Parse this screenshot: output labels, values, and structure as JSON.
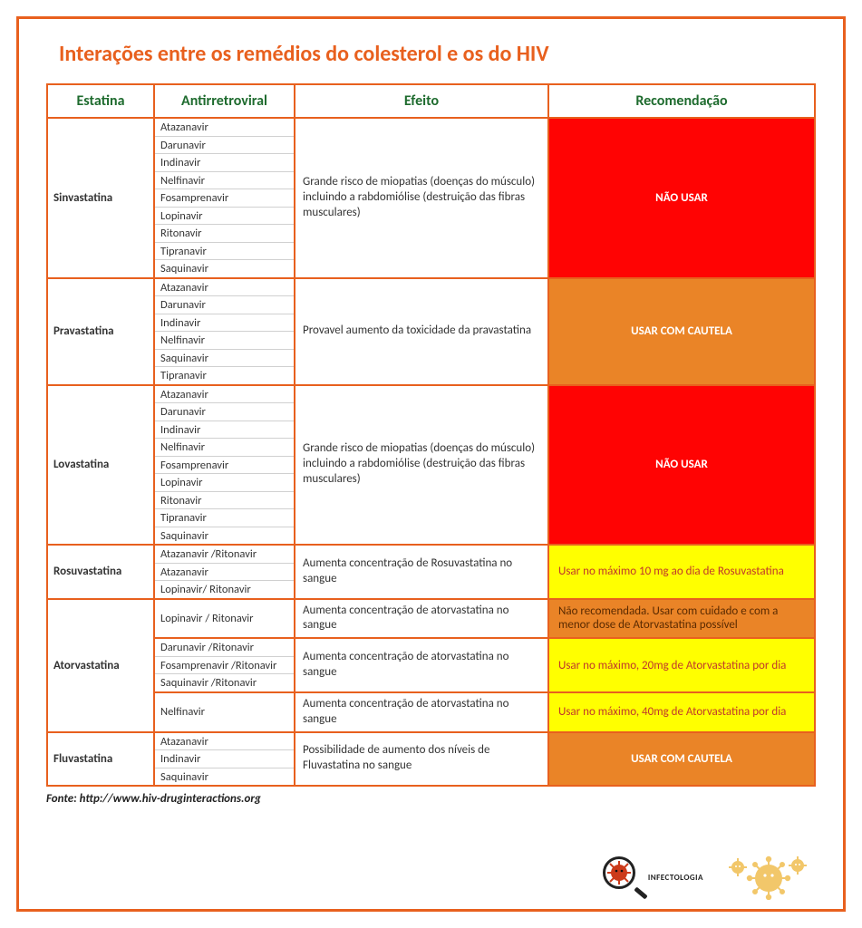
{
  "title": "Interações entre os remédios do colesterol e os do HIV",
  "headers": {
    "statin": "Estatina",
    "arv": "Antirretroviral",
    "effect": "Efeito",
    "rec": "Recomendação"
  },
  "colors": {
    "border": "#e8601e",
    "header_text": "#1e6b2e",
    "rec_red_bg": "#ff0303",
    "rec_red_text": "#ffffff",
    "rec_orange_bg": "#ea8427",
    "rec_orange_text": "#ffffff",
    "rec_orange_dark_text": "#5a2a00",
    "rec_yellow_bg": "#ffff00",
    "rec_yellow_text": "#c0392b"
  },
  "rows": [
    {
      "statin": "Sinvastatina",
      "arv": [
        "Atazanavir",
        "Darunavir",
        "Indinavir",
        "Nelfinavir",
        "Fosamprenavir",
        "Lopinavir",
        "Ritonavir",
        "Tipranavir",
        "Saquinavir"
      ],
      "effect": "Grande risco de miopatias (doenças do músculo) incluindo a rabdomiólise (destruição das fibras musculares)",
      "rec": "NÃO USAR",
      "rec_style": "red-center"
    },
    {
      "statin": "Pravastatina",
      "arv": [
        "Atazanavir",
        "Darunavir",
        "Indinavir",
        "Nelfinavir",
        "Saquinavir",
        "Tipranavir"
      ],
      "effect": "Provavel aumento da toxicidade da pravastatina",
      "rec": "USAR COM CAUTELA",
      "rec_style": "orange-center"
    },
    {
      "statin": "Lovastatina",
      "arv": [
        "Atazanavir",
        "Darunavir",
        "Indinavir",
        "Nelfinavir",
        "Fosamprenavir",
        "Lopinavir",
        "Ritonavir",
        "Tipranavir",
        "Saquinavir"
      ],
      "effect": "Grande risco de miopatias (doenças do músculo) incluindo a rabdomiólise (destruição das fibras musculares)",
      "rec": "NÃO USAR",
      "rec_style": "red-center"
    },
    {
      "statin": "Rosuvastatina",
      "arv": [
        "Atazanavir /Ritonavir",
        "Atazanavir",
        "Lopinavir/ Ritonavir"
      ],
      "effect": "Aumenta concentração de Rosuvastatina no sangue",
      "rec": "Usar no máximo 10 mg ao dia de Rosuvastatina",
      "rec_style": "yellow-left"
    },
    {
      "statin": "Atorvastatina",
      "statin_rowspan": 3,
      "arv": [
        "Lopinavir / Ritonavir"
      ],
      "effect": "Aumenta concentração de atorvastatina no sangue",
      "rec": "Não recomendada. Usar com cuidado e com a menor dose de Atorvastatina possível",
      "rec_style": "orange-left"
    },
    {
      "arv": [
        "Darunavir /Ritonavir",
        "Fosamprenavir /Ritonavir",
        "Saquinavir /Ritonavir"
      ],
      "effect": "Aumenta concentração de atorvastatina no sangue",
      "rec": "Usar no máximo, 20mg de Atorvastatina por dia",
      "rec_style": "yellow-left"
    },
    {
      "arv": [
        "Nelfinavir"
      ],
      "effect": "Aumenta concentração de atorvastatina no sangue",
      "rec": "Usar no máximo, 40mg de Atorvastatina por dia",
      "rec_style": "yellow-left"
    },
    {
      "statin": "Fluvastatina",
      "arv": [
        "Atazanavir",
        "Indinavir",
        "Saquinavir"
      ],
      "effect": "Possibilidade de aumento dos níveis de Fluvastatina no sangue",
      "rec": "USAR COM CAUTELA",
      "rec_style": "orange-center"
    }
  ],
  "source": "Fonte: http://www.hiv-druginteractions.org",
  "logos": {
    "infect_label": "INFECTOLOGIA"
  }
}
